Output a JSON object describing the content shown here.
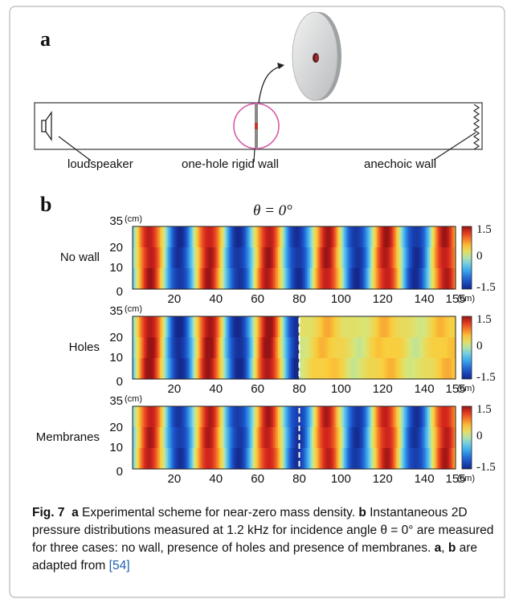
{
  "panel_a": {
    "letter": "a",
    "labels": {
      "loudspeaker": "loudspeaker",
      "wall": "one-hole rigid wall",
      "anechoic": "anechoic wall"
    }
  },
  "panel_b": {
    "letter": "b",
    "title": "θ = 0°",
    "rows": [
      {
        "label": "No wall",
        "has_divider": false
      },
      {
        "label": "Holes",
        "has_divider": true
      },
      {
        "label": "Membranes",
        "has_divider": true
      }
    ],
    "y_ticks": [
      "35",
      "20",
      "10",
      "0"
    ],
    "y_unit": "(cm)",
    "x_ticks": [
      "20",
      "40",
      "60",
      "80",
      "100",
      "120",
      "140",
      "155"
    ],
    "x_unit": "(cm)",
    "colorbar_ticks": [
      "1.5",
      "0",
      "-1.5"
    ]
  },
  "caption": {
    "fig_label": "Fig. 7",
    "part1_letter": "a",
    "part1_text": " Experimental scheme for near-zero mass density. ",
    "part2_letter": "b",
    "part2_text": " Instantaneous 2D pressure distributions measured at 1.2 kHz for incidence angle θ = 0° are measured for three cases: no wall, presence of holes and presence of membranes. ",
    "part3_a": "a",
    "part3_sep": ", ",
    "part3_b": "b",
    "part3_text": " are adapted from ",
    "ref": "[54]"
  },
  "colors": {
    "frame": "#b8b8b8",
    "ref_link": "#1d5fb4",
    "circle": "#d65aa6"
  }
}
